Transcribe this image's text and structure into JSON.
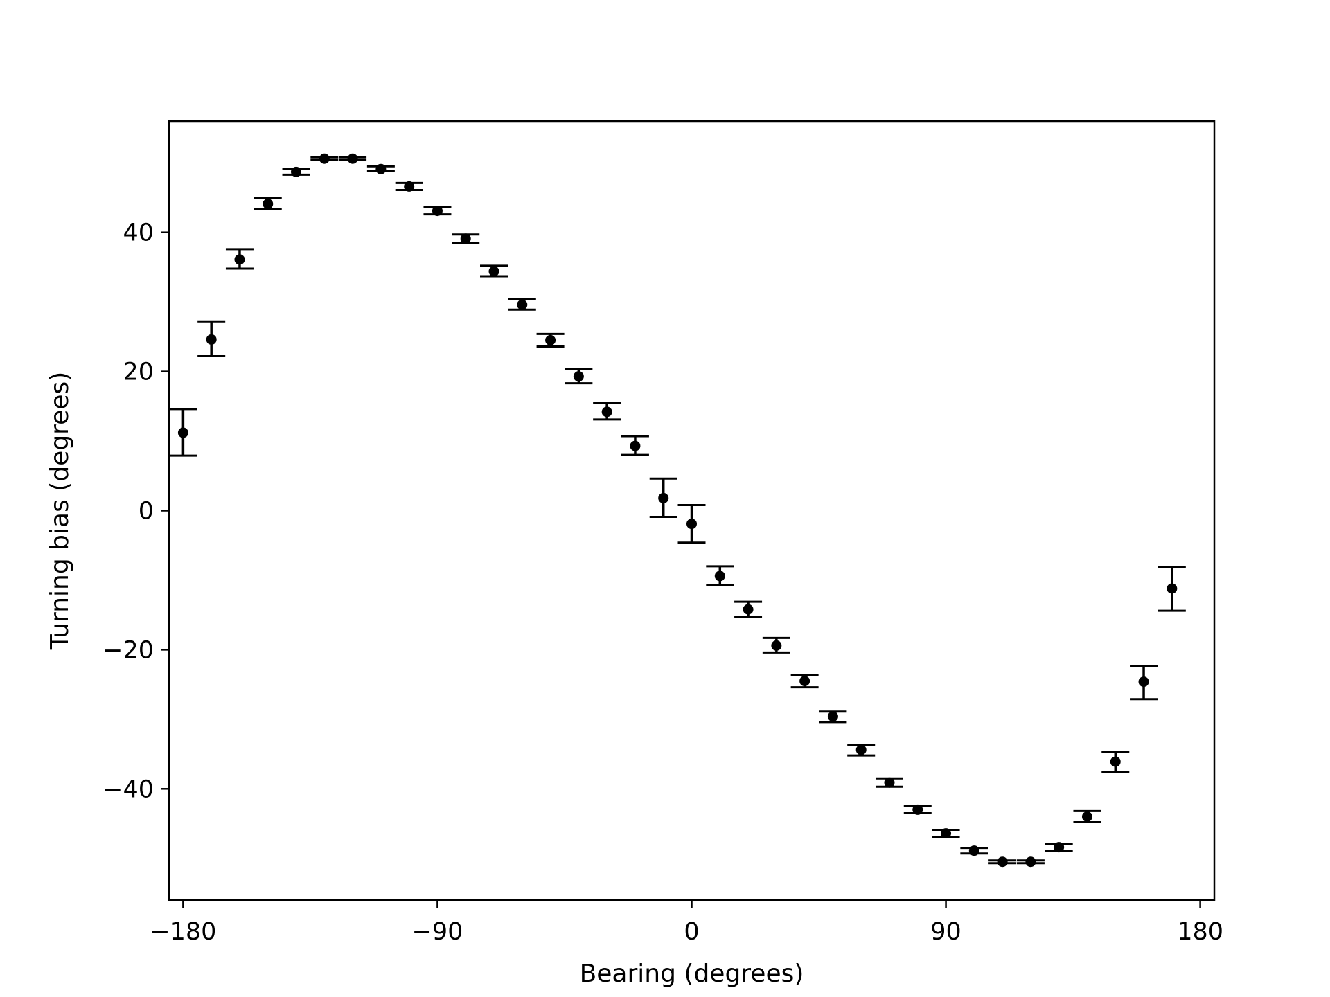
{
  "chart_data": {
    "type": "scatter",
    "title": "",
    "xlabel": "Bearing (degrees)",
    "ylabel": "Turning bias (degrees)",
    "xlim": [
      -185,
      185
    ],
    "ylim": [
      -56,
      56
    ],
    "xticks": [
      -180,
      -90,
      0,
      90,
      180
    ],
    "xtick_labels": [
      "−180",
      "−90",
      "0",
      "90",
      "180"
    ],
    "yticks": [
      -40,
      -20,
      0,
      20,
      40
    ],
    "ytick_labels": [
      "−40",
      "−20",
      "0",
      "20",
      "40"
    ],
    "grid": false,
    "legend": false,
    "color": "#000000",
    "points": [
      {
        "x": -180,
        "y": 11.2,
        "lo": 7.9,
        "hi": 14.6
      },
      {
        "x": -170,
        "y": 24.6,
        "lo": 22.2,
        "hi": 27.2
      },
      {
        "x": -160,
        "y": 36.1,
        "lo": 34.8,
        "hi": 37.6
      },
      {
        "x": -150,
        "y": 44.1,
        "lo": 43.4,
        "hi": 45.0
      },
      {
        "x": -140,
        "y": 48.7,
        "lo": 48.3,
        "hi": 49.1
      },
      {
        "x": -130,
        "y": 50.6,
        "lo": 50.4,
        "hi": 50.8
      },
      {
        "x": -120,
        "y": 50.6,
        "lo": 50.4,
        "hi": 50.8
      },
      {
        "x": -110,
        "y": 49.1,
        "lo": 48.8,
        "hi": 49.5
      },
      {
        "x": -100,
        "y": 46.6,
        "lo": 46.1,
        "hi": 47.1
      },
      {
        "x": -90,
        "y": 43.1,
        "lo": 42.6,
        "hi": 43.7
      },
      {
        "x": -80,
        "y": 39.1,
        "lo": 38.5,
        "hi": 39.7
      },
      {
        "x": -70,
        "y": 34.4,
        "lo": 33.7,
        "hi": 35.2
      },
      {
        "x": -60,
        "y": 29.6,
        "lo": 28.9,
        "hi": 30.4
      },
      {
        "x": -50,
        "y": 24.5,
        "lo": 23.6,
        "hi": 25.4
      },
      {
        "x": -40,
        "y": 19.3,
        "lo": 18.3,
        "hi": 20.4
      },
      {
        "x": -30,
        "y": 14.2,
        "lo": 13.1,
        "hi": 15.5
      },
      {
        "x": -20,
        "y": 9.3,
        "lo": 8.0,
        "hi": 10.7
      },
      {
        "x": -10,
        "y": 1.8,
        "lo": -0.9,
        "hi": 4.6
      },
      {
        "x": 0,
        "y": -1.9,
        "lo": -4.6,
        "hi": 0.8
      },
      {
        "x": 10,
        "y": -9.4,
        "lo": -10.7,
        "hi": -8.0
      },
      {
        "x": 20,
        "y": -14.2,
        "lo": -15.3,
        "hi": -13.1
      },
      {
        "x": 30,
        "y": -19.4,
        "lo": -20.4,
        "hi": -18.3
      },
      {
        "x": 40,
        "y": -24.5,
        "lo": -25.4,
        "hi": -23.6
      },
      {
        "x": 50,
        "y": -29.6,
        "lo": -30.4,
        "hi": -28.9
      },
      {
        "x": 60,
        "y": -34.4,
        "lo": -35.2,
        "hi": -33.7
      },
      {
        "x": 70,
        "y": -39.1,
        "lo": -39.7,
        "hi": -38.5
      },
      {
        "x": 80,
        "y": -43.0,
        "lo": -43.5,
        "hi": -42.5
      },
      {
        "x": 90,
        "y": -46.4,
        "lo": -46.9,
        "hi": -45.9
      },
      {
        "x": 100,
        "y": -48.9,
        "lo": -49.3,
        "hi": -48.5
      },
      {
        "x": 110,
        "y": -50.5,
        "lo": -50.7,
        "hi": -50.3
      },
      {
        "x": 120,
        "y": -50.5,
        "lo": -50.7,
        "hi": -50.3
      },
      {
        "x": 130,
        "y": -48.4,
        "lo": -48.9,
        "hi": -47.9
      },
      {
        "x": 140,
        "y": -44.0,
        "lo": -44.8,
        "hi": -43.2
      },
      {
        "x": 150,
        "y": -36.1,
        "lo": -37.6,
        "hi": -34.7
      },
      {
        "x": 160,
        "y": -24.6,
        "lo": -27.1,
        "hi": -22.3
      },
      {
        "x": 170,
        "y": -11.2,
        "lo": -14.4,
        "hi": -8.1
      }
    ]
  }
}
